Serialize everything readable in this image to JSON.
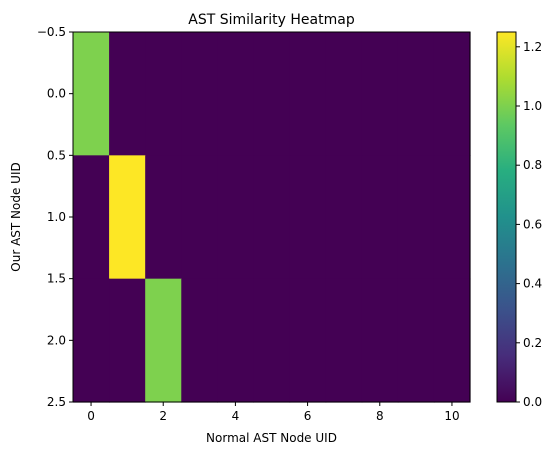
{
  "chart_data": {
    "type": "heatmap",
    "title": "AST Similarity Heatmap",
    "xlabel": "Normal AST Node UID",
    "ylabel": "Our AST Node UID",
    "x": [
      0,
      1,
      2,
      3,
      4,
      5,
      6,
      7,
      8,
      9,
      10
    ],
    "y": [
      0,
      1,
      2
    ],
    "values": [
      [
        1.0,
        0,
        0,
        0,
        0,
        0,
        0,
        0,
        0,
        0,
        0
      ],
      [
        0,
        1.25,
        0,
        0,
        0,
        0,
        0,
        0,
        0,
        0,
        0
      ],
      [
        0,
        0,
        1.0,
        0,
        0,
        0,
        0,
        0,
        0,
        0,
        0
      ]
    ],
    "xlim": [
      -0.5,
      10.5
    ],
    "ylim": [
      -0.5,
      2.5
    ],
    "x_ticks": [
      "0",
      "2",
      "4",
      "6",
      "8",
      "10"
    ],
    "x_tick_values": [
      0,
      2,
      4,
      6,
      8,
      10
    ],
    "y_ticks": [
      "−0.5",
      "0.0",
      "0.5",
      "1.0",
      "1.5",
      "2.0",
      "2.5"
    ],
    "y_tick_values": [
      -0.5,
      0.0,
      0.5,
      1.0,
      1.5,
      2.0,
      2.5
    ],
    "colorbar": {
      "colormap": "viridis",
      "vmin": 0.0,
      "vmax": 1.25,
      "ticks": [
        "0.0",
        "0.2",
        "0.4",
        "0.6",
        "0.8",
        "1.0",
        "1.2"
      ],
      "tick_values": [
        0.0,
        0.2,
        0.4,
        0.6,
        0.8,
        1.0,
        1.2
      ]
    },
    "grid": false,
    "legend": "none"
  }
}
